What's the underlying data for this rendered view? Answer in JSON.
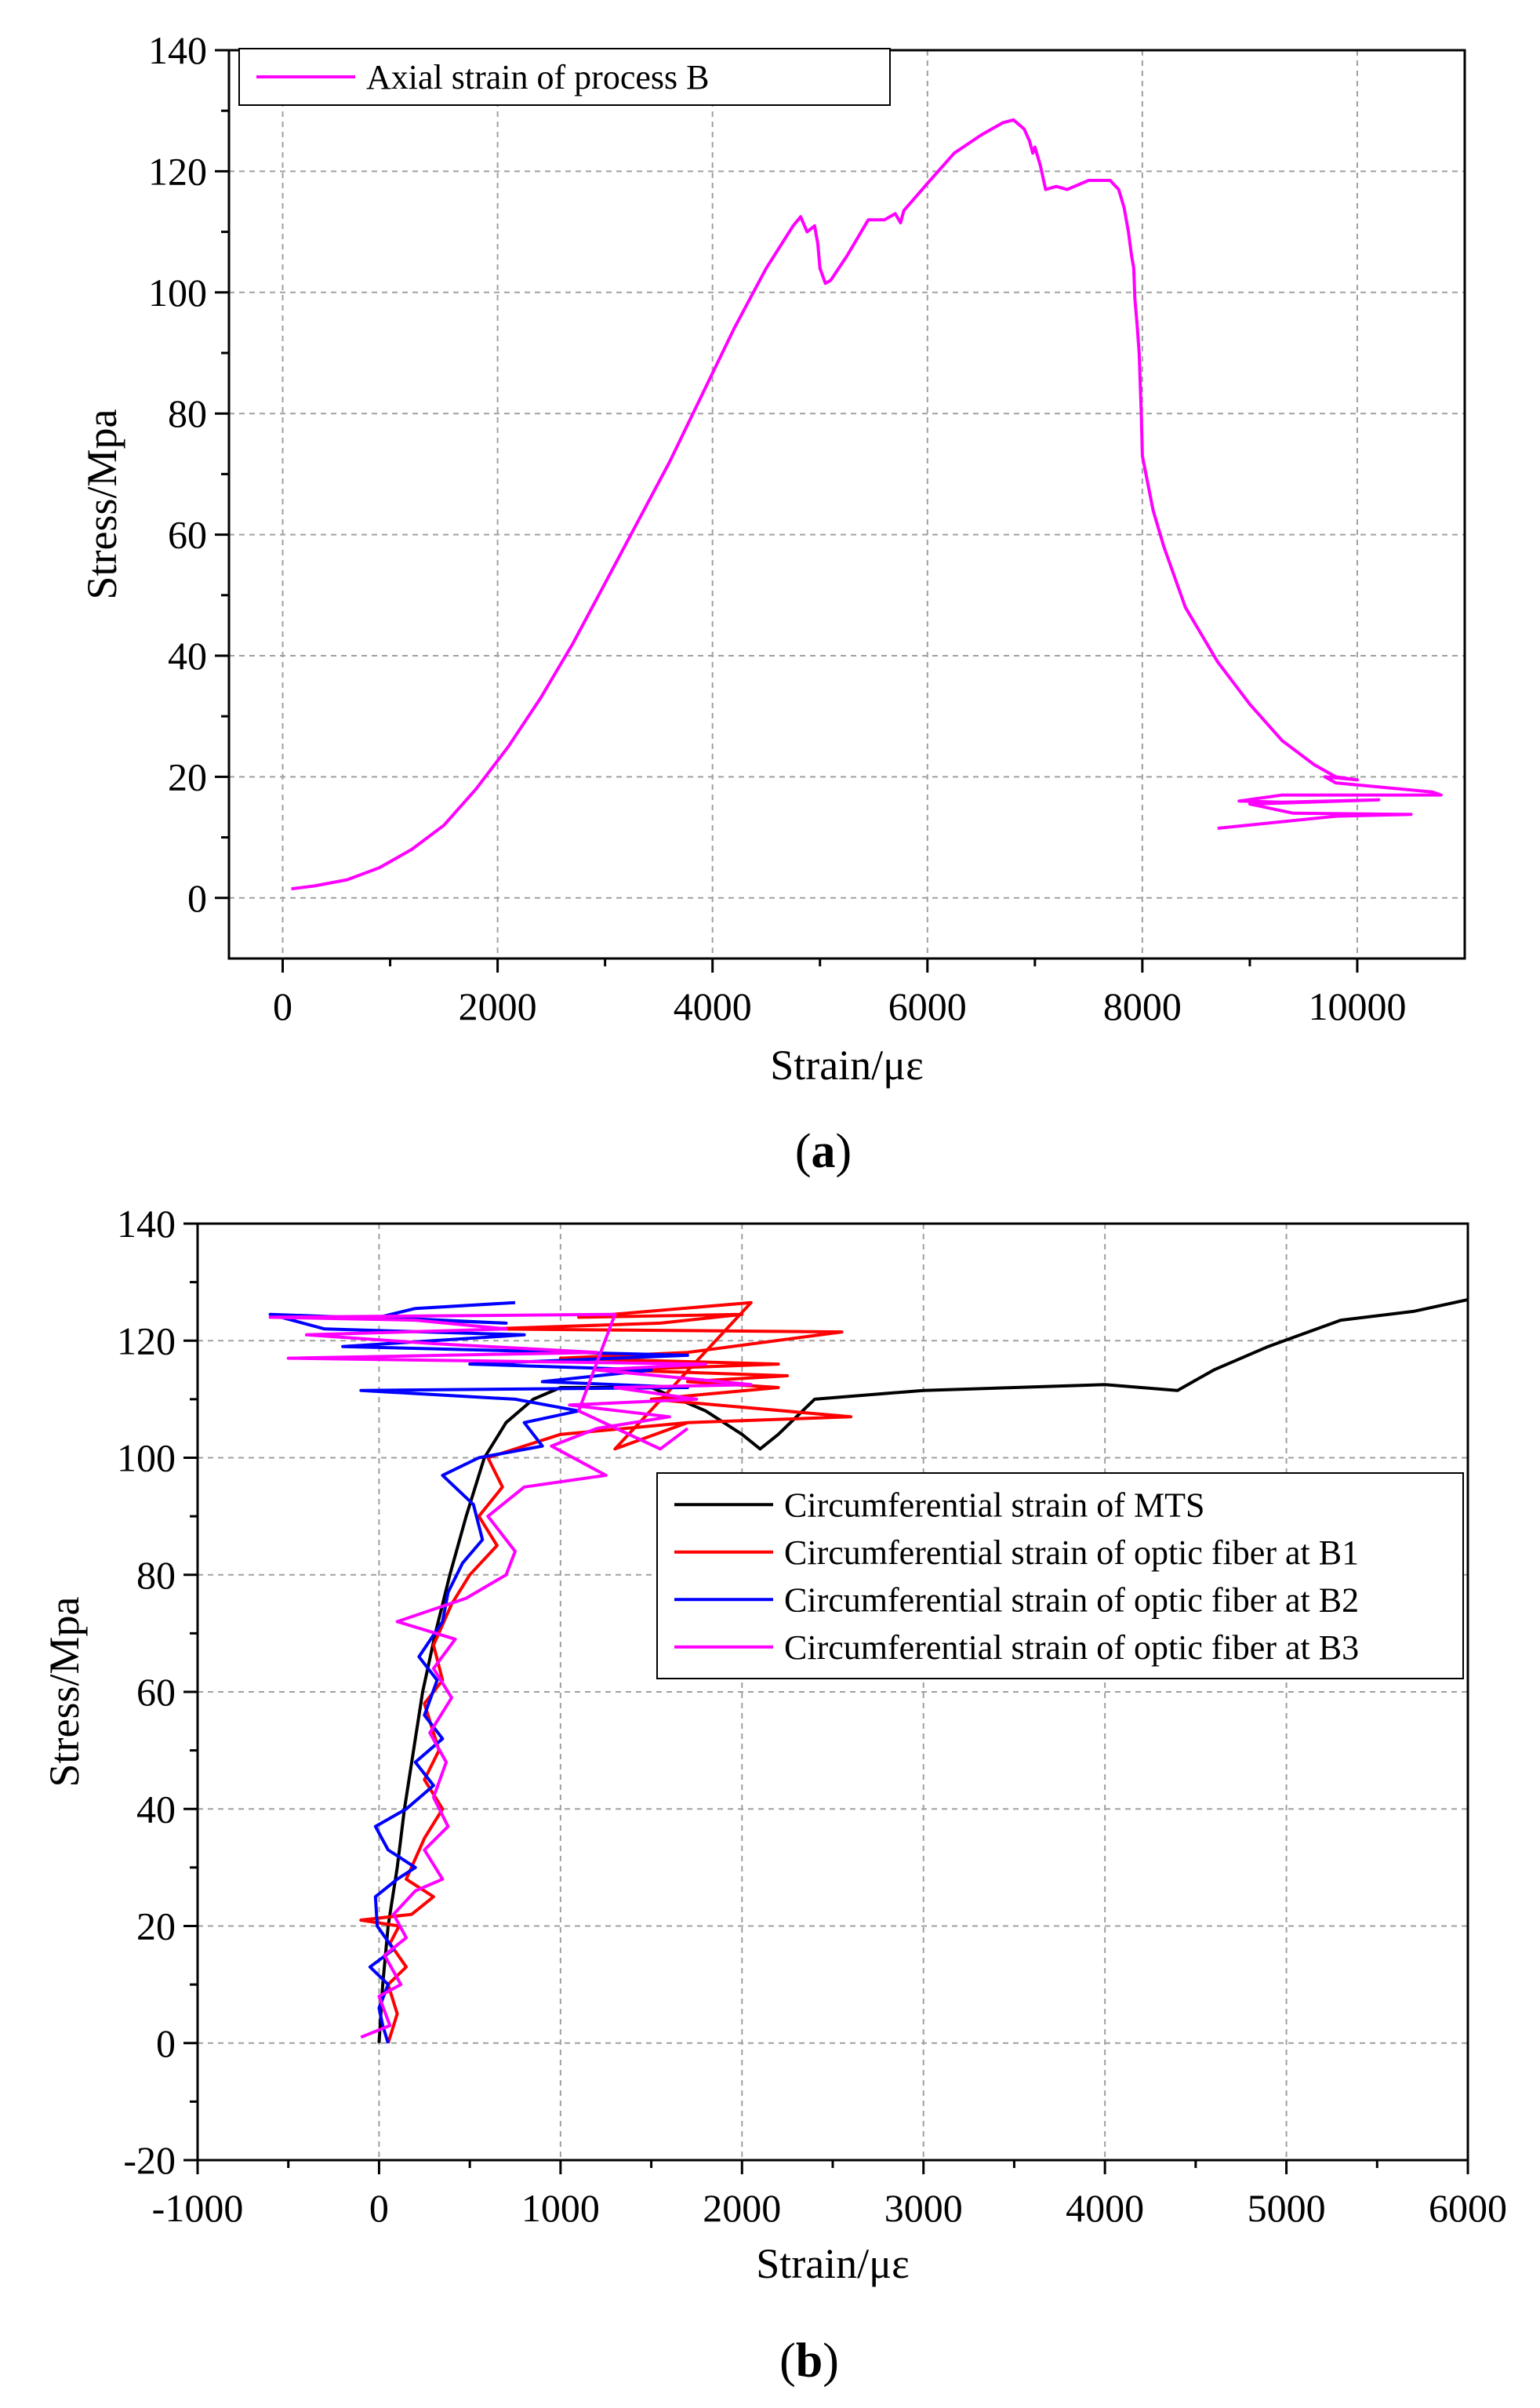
{
  "chart_data": [
    {
      "type": "line",
      "panel_label": "a",
      "xlabel": "Strain/με",
      "ylabel": "Stress/Mpa",
      "xlim": [
        -500,
        11000
      ],
      "ylim": [
        -10,
        140
      ],
      "xticks": [
        0,
        2000,
        4000,
        6000,
        8000,
        10000
      ],
      "yticks": [
        0,
        20,
        40,
        60,
        80,
        100,
        120,
        140
      ],
      "grid": true,
      "legend_position": "top-left",
      "series": [
        {
          "name": "Axial strain of process B",
          "color": "#ff00ff",
          "points": [
            [
              80,
              1.5
            ],
            [
              300,
              2
            ],
            [
              600,
              3
            ],
            [
              900,
              5
            ],
            [
              1200,
              8
            ],
            [
              1500,
              12
            ],
            [
              1800,
              18
            ],
            [
              2100,
              25
            ],
            [
              2400,
              33
            ],
            [
              2700,
              42
            ],
            [
              3000,
              52
            ],
            [
              3300,
              62
            ],
            [
              3600,
              72
            ],
            [
              3900,
              83
            ],
            [
              4200,
              94
            ],
            [
              4500,
              104
            ],
            [
              4750,
              111
            ],
            [
              4820,
              112.5
            ],
            [
              4880,
              110
            ],
            [
              4950,
              111
            ],
            [
              4980,
              108
            ],
            [
              5000,
              104
            ],
            [
              5050,
              101.5
            ],
            [
              5100,
              102
            ],
            [
              5250,
              106
            ],
            [
              5450,
              112
            ],
            [
              5600,
              112
            ],
            [
              5700,
              113
            ],
            [
              5750,
              111.5
            ],
            [
              5780,
              113.5
            ],
            [
              6000,
              118
            ],
            [
              6250,
              123
            ],
            [
              6500,
              126
            ],
            [
              6700,
              128
            ],
            [
              6800,
              128.5
            ],
            [
              6900,
              127
            ],
            [
              6950,
              125
            ],
            [
              6980,
              123
            ],
            [
              7000,
              124
            ],
            [
              7050,
              121
            ],
            [
              7100,
              117
            ],
            [
              7200,
              117.5
            ],
            [
              7300,
              117
            ],
            [
              7500,
              118.5
            ],
            [
              7700,
              118.5
            ],
            [
              7780,
              117
            ],
            [
              7830,
              114
            ],
            [
              7870,
              110
            ],
            [
              7900,
              106
            ],
            [
              7920,
              104
            ],
            [
              7930,
              99
            ],
            [
              7950,
              95
            ],
            [
              7970,
              90
            ],
            [
              7990,
              80
            ],
            [
              8000,
              73
            ],
            [
              8100,
              64
            ],
            [
              8200,
              58
            ],
            [
              8400,
              48
            ],
            [
              8700,
              39
            ],
            [
              9000,
              32
            ],
            [
              9300,
              26
            ],
            [
              9600,
              22
            ],
            [
              9800,
              20
            ],
            [
              10000,
              19.5
            ],
            [
              9700,
              20
            ],
            [
              9800,
              19
            ],
            [
              10100,
              18.5
            ],
            [
              10700,
              17.5
            ],
            [
              10780,
              17
            ],
            [
              9300,
              17
            ],
            [
              8900,
              16
            ],
            [
              9300,
              15.8
            ],
            [
              10200,
              16.2
            ],
            [
              9000,
              15.5
            ],
            [
              9400,
              14
            ],
            [
              10500,
              13.8
            ],
            [
              9800,
              13.5
            ],
            [
              8700,
              11.5
            ]
          ]
        }
      ]
    },
    {
      "type": "line",
      "panel_label": "b",
      "xlabel": "Strain/με",
      "ylabel": "Stress/Mpa",
      "xlim": [
        -1000,
        6000
      ],
      "ylim": [
        -20,
        140
      ],
      "xticks": [
        -1000,
        0,
        1000,
        2000,
        3000,
        4000,
        5000,
        6000
      ],
      "yticks": [
        -20,
        0,
        20,
        40,
        60,
        80,
        100,
        120,
        140
      ],
      "grid": true,
      "legend_position": "center-right",
      "series": [
        {
          "name": "Circumferential strain of MTS",
          "color": "#000000",
          "points": [
            [
              0,
              0
            ],
            [
              20,
              10
            ],
            [
              50,
              20
            ],
            [
              100,
              30
            ],
            [
              140,
              40
            ],
            [
              190,
              50
            ],
            [
              240,
              60
            ],
            [
              310,
              70
            ],
            [
              390,
              80
            ],
            [
              480,
              90
            ],
            [
              580,
              100
            ],
            [
              700,
              106
            ],
            [
              850,
              110
            ],
            [
              1000,
              112
            ],
            [
              1500,
              112
            ],
            [
              1800,
              108
            ],
            [
              2000,
              104
            ],
            [
              2100,
              101.5
            ],
            [
              2200,
              104
            ],
            [
              2300,
              107
            ],
            [
              2400,
              110
            ],
            [
              2600,
              110.5
            ],
            [
              3000,
              111.5
            ],
            [
              3500,
              112
            ],
            [
              4000,
              112.5
            ],
            [
              4400,
              111.5
            ],
            [
              4600,
              115
            ],
            [
              4900,
              119
            ],
            [
              5300,
              123.5
            ],
            [
              5700,
              125
            ],
            [
              6000,
              127
            ]
          ]
        },
        {
          "name": "Circumferential strain of optic fiber at B1",
          "color": "#ff0000",
          "points": [
            [
              50,
              0
            ],
            [
              100,
              5
            ],
            [
              50,
              10
            ],
            [
              150,
              13
            ],
            [
              60,
              17
            ],
            [
              110,
              20
            ],
            [
              -100,
              21
            ],
            [
              180,
              22
            ],
            [
              300,
              25
            ],
            [
              150,
              28
            ],
            [
              250,
              35
            ],
            [
              350,
              40
            ],
            [
              250,
              45
            ],
            [
              330,
              50
            ],
            [
              250,
              58
            ],
            [
              350,
              62
            ],
            [
              300,
              68
            ],
            [
              400,
              75
            ],
            [
              500,
              80
            ],
            [
              650,
              85
            ],
            [
              550,
              90
            ],
            [
              680,
              95
            ],
            [
              600,
              100
            ],
            [
              1000,
              104
            ],
            [
              1700,
              106
            ],
            [
              2600,
              107
            ],
            [
              1500,
              110
            ],
            [
              2200,
              112
            ],
            [
              1700,
              113
            ],
            [
              2250,
              114
            ],
            [
              1300,
              115
            ],
            [
              2200,
              116
            ],
            [
              1000,
              117
            ],
            [
              1700,
              118
            ],
            [
              2550,
              121.5
            ],
            [
              600,
              122
            ],
            [
              1550,
              123
            ],
            [
              2000,
              124.5
            ],
            [
              1100,
              124
            ],
            [
              2050,
              126.5
            ],
            [
              1300,
              101.5
            ],
            [
              1700,
              106
            ]
          ]
        },
        {
          "name": "Circumferential strain of optic fiber at B2",
          "color": "#0000ff",
          "points": [
            [
              50,
              0
            ],
            [
              20,
              3
            ],
            [
              0,
              6
            ],
            [
              50,
              10
            ],
            [
              -50,
              13
            ],
            [
              80,
              16
            ],
            [
              -10,
              20
            ],
            [
              -20,
              25
            ],
            [
              100,
              28
            ],
            [
              200,
              30
            ],
            [
              50,
              33
            ],
            [
              -20,
              37
            ],
            [
              150,
              40
            ],
            [
              300,
              44
            ],
            [
              200,
              48
            ],
            [
              350,
              52
            ],
            [
              250,
              56
            ],
            [
              320,
              62
            ],
            [
              220,
              66
            ],
            [
              350,
              72
            ],
            [
              380,
              77
            ],
            [
              460,
              82
            ],
            [
              570,
              86
            ],
            [
              520,
              92
            ],
            [
              350,
              97
            ],
            [
              550,
              100
            ],
            [
              900,
              102
            ],
            [
              800,
              106
            ],
            [
              1100,
              108
            ],
            [
              750,
              110
            ],
            [
              -100,
              111.5
            ],
            [
              1700,
              112
            ],
            [
              900,
              113
            ],
            [
              1500,
              115
            ],
            [
              500,
              116
            ],
            [
              1700,
              117.5
            ],
            [
              -200,
              119
            ],
            [
              800,
              121
            ],
            [
              -300,
              122
            ],
            [
              -600,
              124.5
            ],
            [
              700,
              123
            ],
            [
              0,
              124
            ],
            [
              200,
              125.5
            ],
            [
              750,
              126.5
            ]
          ]
        },
        {
          "name": "Circumferential strain of optic fiber at B3",
          "color": "#ff00ff",
          "points": [
            [
              -100,
              1
            ],
            [
              60,
              3
            ],
            [
              0,
              8
            ],
            [
              120,
              10
            ],
            [
              30,
              15
            ],
            [
              150,
              18
            ],
            [
              80,
              22
            ],
            [
              200,
              26
            ],
            [
              350,
              28
            ],
            [
              250,
              33
            ],
            [
              380,
              37
            ],
            [
              300,
              42
            ],
            [
              370,
              48
            ],
            [
              280,
              53
            ],
            [
              400,
              59
            ],
            [
              300,
              64
            ],
            [
              420,
              69
            ],
            [
              100,
              72
            ],
            [
              480,
              76
            ],
            [
              700,
              80
            ],
            [
              750,
              84
            ],
            [
              600,
              90
            ],
            [
              800,
              95
            ],
            [
              1250,
              97
            ],
            [
              950,
              102
            ],
            [
              1200,
              105
            ],
            [
              1600,
              107
            ],
            [
              1050,
              109
            ],
            [
              1750,
              110
            ],
            [
              1300,
              112
            ],
            [
              2050,
              112.5
            ],
            [
              1200,
              115
            ],
            [
              1800,
              116
            ],
            [
              -500,
              117
            ],
            [
              1200,
              118
            ],
            [
              300,
              119.5
            ],
            [
              -400,
              121
            ],
            [
              700,
              122
            ],
            [
              200,
              123.5
            ],
            [
              -600,
              124
            ],
            [
              1300,
              124.5
            ],
            [
              1100,
              108
            ],
            [
              1550,
              101.5
            ],
            [
              1700,
              105
            ]
          ]
        }
      ]
    }
  ]
}
